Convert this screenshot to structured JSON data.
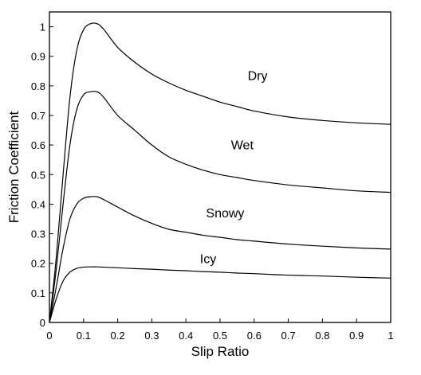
{
  "chart_data": {
    "type": "line",
    "title": "",
    "xlabel": "Slip Ratio",
    "ylabel": "Friction Coefficient",
    "xlim": [
      0,
      1
    ],
    "ylim": [
      0,
      1.05
    ],
    "x_ticks": [
      "0",
      "0.1",
      "0.2",
      "0.3",
      "0.4",
      "0.5",
      "0.6",
      "0.7",
      "0.8",
      "0.9",
      "1"
    ],
    "y_ticks": [
      "0",
      "0.1",
      "0.2",
      "0.3",
      "0.4",
      "0.5",
      "0.6",
      "0.7",
      "0.8",
      "0.9",
      "1"
    ],
    "grid": false,
    "legend": "none",
    "series": [
      {
        "name": "Dry",
        "x": [
          0,
          0.02,
          0.04,
          0.06,
          0.08,
          0.1,
          0.12,
          0.14,
          0.16,
          0.2,
          0.25,
          0.3,
          0.35,
          0.4,
          0.45,
          0.5,
          0.55,
          0.6,
          0.7,
          0.8,
          0.9,
          1.0
        ],
        "y": [
          0,
          0.22,
          0.5,
          0.76,
          0.92,
          0.99,
          1.01,
          1.01,
          0.99,
          0.93,
          0.88,
          0.84,
          0.81,
          0.785,
          0.765,
          0.745,
          0.73,
          0.715,
          0.695,
          0.683,
          0.675,
          0.67
        ]
      },
      {
        "name": "Wet",
        "x": [
          0,
          0.02,
          0.04,
          0.06,
          0.08,
          0.1,
          0.12,
          0.14,
          0.16,
          0.2,
          0.25,
          0.3,
          0.35,
          0.4,
          0.45,
          0.5,
          0.55,
          0.6,
          0.7,
          0.8,
          0.9,
          1.0
        ],
        "y": [
          0,
          0.18,
          0.4,
          0.6,
          0.72,
          0.77,
          0.78,
          0.78,
          0.76,
          0.7,
          0.65,
          0.6,
          0.56,
          0.535,
          0.515,
          0.5,
          0.49,
          0.48,
          0.465,
          0.455,
          0.445,
          0.44
        ]
      },
      {
        "name": "Snowy",
        "x": [
          0,
          0.02,
          0.04,
          0.06,
          0.08,
          0.1,
          0.12,
          0.14,
          0.16,
          0.2,
          0.25,
          0.3,
          0.35,
          0.4,
          0.45,
          0.5,
          0.55,
          0.6,
          0.7,
          0.8,
          0.9,
          1.0
        ],
        "y": [
          0,
          0.12,
          0.25,
          0.35,
          0.4,
          0.42,
          0.425,
          0.425,
          0.415,
          0.39,
          0.36,
          0.335,
          0.315,
          0.305,
          0.295,
          0.288,
          0.28,
          0.275,
          0.265,
          0.258,
          0.252,
          0.248
        ]
      },
      {
        "name": "Icy",
        "x": [
          0,
          0.02,
          0.04,
          0.06,
          0.08,
          0.1,
          0.12,
          0.14,
          0.16,
          0.2,
          0.25,
          0.3,
          0.35,
          0.4,
          0.45,
          0.5,
          0.55,
          0.6,
          0.7,
          0.8,
          0.9,
          1.0
        ],
        "y": [
          0,
          0.08,
          0.14,
          0.17,
          0.183,
          0.187,
          0.188,
          0.188,
          0.187,
          0.185,
          0.182,
          0.18,
          0.177,
          0.175,
          0.172,
          0.17,
          0.167,
          0.165,
          0.16,
          0.157,
          0.153,
          0.15
        ]
      }
    ],
    "annotations": [
      {
        "text": "Dry",
        "series": "Dry",
        "x": 0.61,
        "y": 0.82
      },
      {
        "text": "Wet",
        "series": "Wet",
        "x": 0.565,
        "y": 0.585
      },
      {
        "text": "Snowy",
        "series": "Snowy",
        "x": 0.515,
        "y": 0.355
      },
      {
        "text": "Icy",
        "series": "Icy",
        "x": 0.465,
        "y": 0.2
      }
    ]
  }
}
